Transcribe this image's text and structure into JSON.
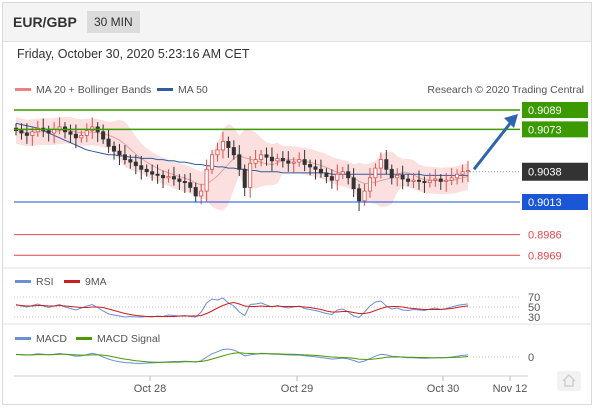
{
  "header": {
    "symbol": "EUR/GBP",
    "timeframe": "30 MIN"
  },
  "datetime": "Friday, October 30, 2020 5:23:16 AM CET",
  "legend": {
    "bollinger": "MA 20 + Bollinger Bands",
    "ma50": "MA 50",
    "credit": "Research © 2020 Trading Central"
  },
  "colors": {
    "up": "#d9534f",
    "down": "#333333",
    "bands": "#fcd9d9",
    "ma20": "#e8a0a0",
    "ma50": "#2f5d9e",
    "green": "#3a9a00",
    "blue": "#1a56d6",
    "red": "#e0474c",
    "rsi": "#6b8fd6",
    "rsi_ma": "#cc1f1f",
    "macd": "#6b8fd6",
    "macd_signal": "#4a9a00",
    "arrow": "#2f65b0",
    "current": "#333333"
  },
  "chart_data": [
    {
      "type": "candlestick",
      "title": "EUR/GBP 30 MIN",
      "x_ticks": [
        "Oct 28",
        "Oct 29",
        "Oct 30",
        "Nov 12"
      ],
      "price_levels": [
        {
          "value": 0.9089,
          "label": "0.9089",
          "style": "resistance",
          "color": "green"
        },
        {
          "value": 0.9073,
          "label": "0.9073",
          "style": "resistance",
          "color": "green"
        },
        {
          "value": 0.9038,
          "label": "0.9038",
          "style": "current",
          "color": "current"
        },
        {
          "value": 0.9013,
          "label": "0.9013",
          "style": "pivot",
          "color": "blue"
        },
        {
          "value": 0.8986,
          "label": "0.8986",
          "style": "support",
          "color": "red"
        },
        {
          "value": 0.8969,
          "label": "0.8969",
          "style": "support",
          "color": "red"
        }
      ],
      "closes": [
        0.9072,
        0.907,
        0.9068,
        0.9071,
        0.9074,
        0.9072,
        0.907,
        0.9073,
        0.9075,
        0.9071,
        0.9069,
        0.9066,
        0.9068,
        0.9072,
        0.9075,
        0.9071,
        0.9065,
        0.9059,
        0.9055,
        0.9052,
        0.9048,
        0.9046,
        0.9043,
        0.904,
        0.9038,
        0.9036,
        0.9035,
        0.9033,
        0.9034,
        0.9032,
        0.903,
        0.9029,
        0.9025,
        0.9018,
        0.9022,
        0.904,
        0.9052,
        0.9056,
        0.9063,
        0.9058,
        0.9052,
        0.904,
        0.9025,
        0.9045,
        0.9048,
        0.9052,
        0.905,
        0.9047,
        0.9049,
        0.9047,
        0.9045,
        0.9046,
        0.9048,
        0.9044,
        0.9042,
        0.904,
        0.9037,
        0.9034,
        0.9031,
        0.9036,
        0.9038,
        0.9033,
        0.9024,
        0.9014,
        0.9022,
        0.9033,
        0.9041,
        0.9048,
        0.904,
        0.9033,
        0.9035,
        0.9032,
        0.903,
        0.9031,
        0.903,
        0.9029,
        0.9031,
        0.9032,
        0.903,
        0.9031,
        0.9033,
        0.9036,
        0.9038,
        0.9039
      ],
      "ma50": [
        0.9078,
        0.9077,
        0.9076,
        0.9075,
        0.9074,
        0.9072,
        0.907,
        0.9068,
        0.9066,
        0.9064,
        0.9062,
        0.906,
        0.9058,
        0.9056,
        0.9055,
        0.9054,
        0.9053,
        0.9052,
        0.9052,
        0.9051,
        0.9051,
        0.905,
        0.905,
        0.9049,
        0.9049,
        0.9049,
        0.9048,
        0.9048,
        0.9047,
        0.9047,
        0.9046,
        0.9046,
        0.9045,
        0.9044,
        0.9044,
        0.9043,
        0.9043,
        0.9042,
        0.9042,
        0.9041,
        0.9041,
        0.904,
        0.904,
        0.9039,
        0.9039,
        0.9038,
        0.9038,
        0.9038,
        0.9038,
        0.9037,
        0.9037,
        0.9037,
        0.9037,
        0.9037,
        0.9037,
        0.9037,
        0.9037,
        0.9037,
        0.9036,
        0.9036,
        0.9036,
        0.9036,
        0.9036,
        0.9036,
        0.9036,
        0.9036,
        0.9036,
        0.9036,
        0.9036,
        0.9036,
        0.9036,
        0.9036,
        0.9036,
        0.9036,
        0.9036,
        0.9035,
        0.9035,
        0.9035,
        0.9035,
        0.9035,
        0.9035,
        0.9035,
        0.9035,
        0.9035
      ],
      "projection": {
        "from": 0.904,
        "to": 0.9089
      }
    },
    {
      "type": "line",
      "title": "RSI",
      "levels": [
        70,
        50,
        30
      ],
      "series": [
        {
          "name": "RSI",
          "values": [
            55,
            52,
            50,
            53,
            56,
            52,
            49,
            52,
            55,
            50,
            47,
            44,
            48,
            52,
            55,
            49,
            42,
            36,
            34,
            32,
            30,
            31,
            30,
            30,
            31,
            30,
            32,
            31,
            34,
            33,
            32,
            33,
            31,
            30,
            40,
            58,
            66,
            64,
            68,
            58,
            52,
            40,
            33,
            55,
            56,
            58,
            54,
            50,
            53,
            50,
            48,
            50,
            52,
            47,
            45,
            43,
            40,
            37,
            35,
            44,
            46,
            40,
            32,
            29,
            40,
            52,
            60,
            62,
            52,
            46,
            48,
            44,
            43,
            45,
            44,
            43,
            46,
            48,
            45,
            47,
            50,
            53,
            55,
            56
          ]
        },
        {
          "name": "9MA",
          "values": [
            54,
            53,
            52,
            52,
            53,
            53,
            52,
            52,
            53,
            52,
            51,
            50,
            49,
            49,
            50,
            50,
            49,
            46,
            43,
            40,
            37,
            35,
            33,
            32,
            31,
            31,
            31,
            31,
            31,
            31,
            32,
            32,
            32,
            32,
            33,
            37,
            42,
            48,
            53,
            57,
            59,
            56,
            52,
            51,
            51,
            52,
            51,
            51,
            52,
            51,
            51,
            51,
            51,
            50,
            49,
            47,
            45,
            42,
            40,
            40,
            41,
            41,
            39,
            37,
            37,
            39,
            43,
            47,
            50,
            51,
            51,
            50,
            48,
            47,
            46,
            45,
            45,
            45,
            45,
            46,
            47,
            49,
            51,
            52
          ]
        }
      ]
    },
    {
      "type": "line",
      "title": "MACD",
      "levels": [
        0
      ],
      "series": [
        {
          "name": "MACD",
          "values": [
            1.0,
            0.8,
            0.7,
            0.9,
            1.2,
            1.0,
            0.8,
            1.0,
            1.3,
            1.0,
            0.7,
            0.3,
            0.4,
            0.9,
            1.4,
            0.9,
            0.0,
            -0.8,
            -1.4,
            -1.8,
            -2.1,
            -2.2,
            -2.4,
            -2.4,
            -2.3,
            -2.2,
            -2.1,
            -2.0,
            -1.8,
            -1.7,
            -1.7,
            -1.6,
            -1.7,
            -1.9,
            -1.4,
            0.0,
            1.2,
            2.0,
            2.8,
            3.0,
            2.6,
            1.6,
            0.4,
            0.8,
            1.1,
            1.4,
            1.3,
            1.0,
            1.0,
            0.9,
            0.8,
            0.7,
            0.7,
            0.5,
            0.3,
            0.1,
            -0.2,
            -0.5,
            -0.8,
            -0.6,
            -0.4,
            -0.7,
            -1.3,
            -2.0,
            -1.5,
            -0.6,
            0.3,
            1.0,
            0.8,
            0.3,
            0.2,
            -0.1,
            -0.3,
            -0.3,
            -0.4,
            -0.5,
            -0.4,
            -0.3,
            -0.3,
            -0.2,
            0.0,
            0.3,
            0.6,
            0.8
          ]
        },
        {
          "name": "MACD Signal",
          "values": [
            0.9,
            0.9,
            0.8,
            0.8,
            0.9,
            0.9,
            0.9,
            0.9,
            1.0,
            1.0,
            0.9,
            0.8,
            0.7,
            0.7,
            0.8,
            0.8,
            0.7,
            0.4,
            0.0,
            -0.4,
            -0.8,
            -1.1,
            -1.4,
            -1.6,
            -1.8,
            -1.9,
            -2.0,
            -2.0,
            -2.0,
            -1.9,
            -1.9,
            -1.8,
            -1.8,
            -1.8,
            -1.7,
            -1.3,
            -0.8,
            -0.2,
            0.4,
            1.0,
            1.4,
            1.6,
            1.4,
            1.3,
            1.2,
            1.2,
            1.2,
            1.2,
            1.2,
            1.1,
            1.0,
            1.0,
            0.9,
            0.8,
            0.7,
            0.6,
            0.4,
            0.2,
            0.0,
            -0.1,
            -0.2,
            -0.3,
            -0.5,
            -0.8,
            -0.9,
            -0.9,
            -0.7,
            -0.4,
            -0.1,
            0.0,
            0.0,
            0.0,
            -0.1,
            -0.1,
            -0.2,
            -0.2,
            -0.3,
            -0.3,
            -0.3,
            -0.3,
            -0.2,
            -0.1,
            0.0,
            0.2
          ]
        }
      ]
    }
  ]
}
